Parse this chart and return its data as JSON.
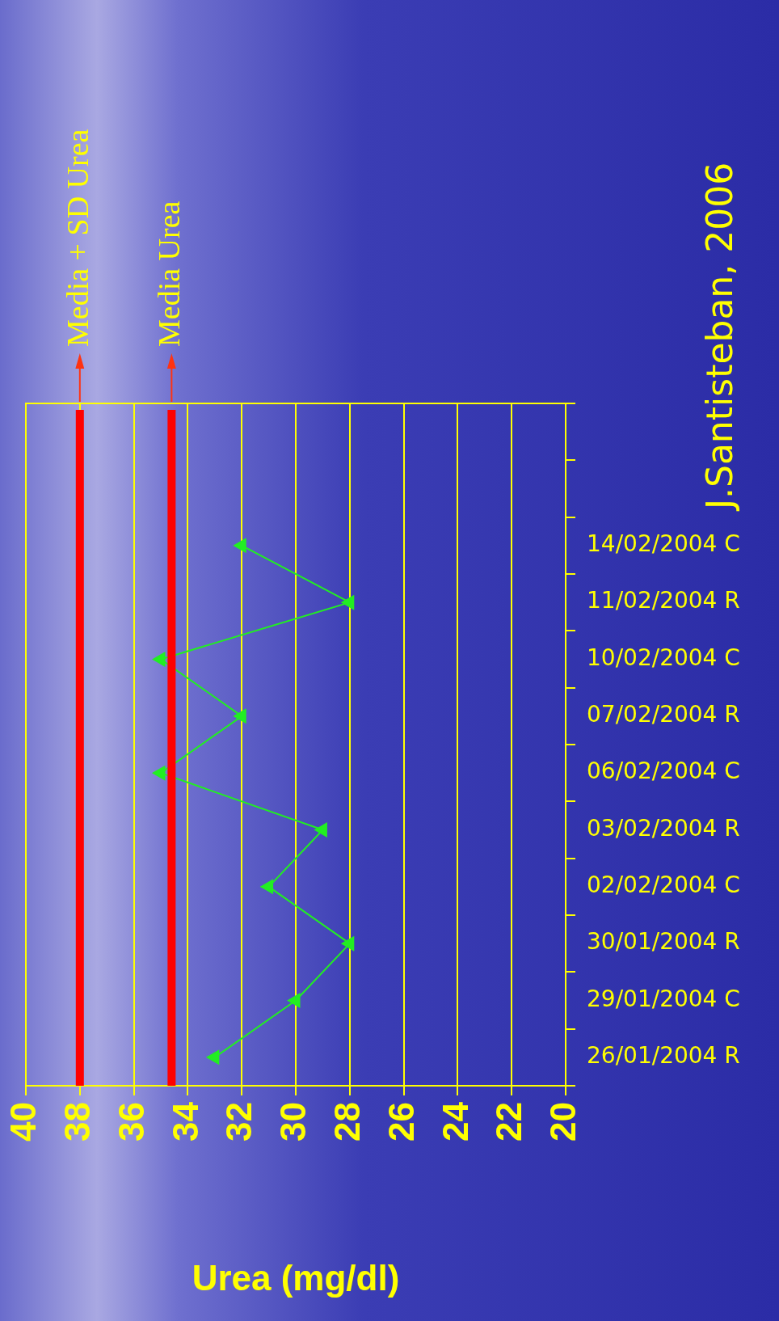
{
  "chart_data": {
    "type": "line",
    "orientation": "horizontal",
    "xlabel": "Urea (mg/dl)",
    "categories": [
      null,
      null,
      "14/02/2004 C",
      "11/02/2004 R",
      "10/02/2004 C",
      "07/02/2004 R",
      "06/02/2004 C",
      "03/02/2004 R",
      "02/02/2004 C",
      "30/01/2004 R",
      "29/01/2004 C",
      "26/01/2004 R"
    ],
    "series": [
      {
        "color": "#22ee22",
        "values": [
          null,
          null,
          32,
          28,
          35,
          32,
          35,
          29,
          31,
          28,
          30,
          33
        ]
      }
    ],
    "xlim": [
      40,
      20
    ],
    "xticks": [
      40,
      38,
      36,
      34,
      32,
      30,
      28,
      26,
      24,
      22,
      20
    ],
    "ref_lines": [
      {
        "axis": "x",
        "value": 38,
        "label": "Media + SD Urea",
        "color": "#ff0000"
      },
      {
        "axis": "x",
        "value": 34.6,
        "label": "Media Urea",
        "color": "#ff0000"
      }
    ],
    "annotations": [
      "J.Santisteban, 2006"
    ],
    "grid": "x",
    "legend": false,
    "marker": "triangle",
    "line_style": "solid"
  }
}
